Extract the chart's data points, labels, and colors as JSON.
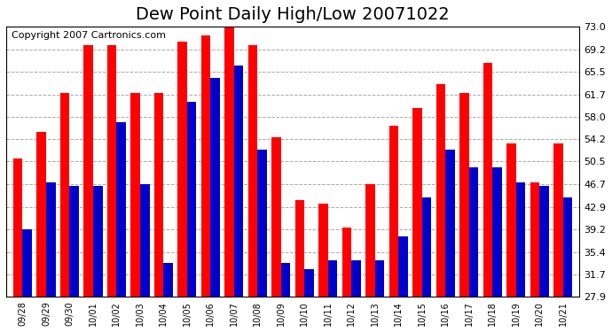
{
  "title": "Dew Point Daily High/Low 20071022",
  "copyright": "Copyright 2007 Cartronics.com",
  "categories": [
    "09/28",
    "09/29",
    "09/30",
    "10/01",
    "10/02",
    "10/03",
    "10/04",
    "10/05",
    "10/06",
    "10/07",
    "10/08",
    "10/09",
    "10/10",
    "10/11",
    "10/12",
    "10/13",
    "10/14",
    "10/15",
    "10/16",
    "10/17",
    "10/18",
    "10/19",
    "10/20",
    "10/21"
  ],
  "high_values": [
    51.0,
    55.5,
    62.0,
    70.0,
    70.0,
    62.0,
    62.0,
    70.5,
    71.5,
    73.0,
    70.0,
    54.5,
    44.0,
    43.5,
    39.5,
    46.7,
    56.5,
    59.5,
    63.5,
    62.0,
    67.0,
    53.5,
    47.0,
    53.5
  ],
  "low_values": [
    39.2,
    47.0,
    46.5,
    46.5,
    57.0,
    46.7,
    33.5,
    60.5,
    64.5,
    66.5,
    52.5,
    33.5,
    32.5,
    34.0,
    34.0,
    34.0,
    38.0,
    44.5,
    52.5,
    49.5,
    49.5,
    47.0,
    46.5,
    44.5
  ],
  "high_color": "#ff0000",
  "low_color": "#0000cc",
  "background_color": "#ffffff",
  "plot_bg_color": "#ffffff",
  "grid_color": "#aaaaaa",
  "ytick_labels": [
    "73.0",
    "69.2",
    "65.5",
    "61.7",
    "58.0",
    "54.2",
    "50.5",
    "46.7",
    "42.9",
    "39.2",
    "35.4",
    "31.7",
    "27.9"
  ],
  "ytick_values": [
    73.0,
    69.2,
    65.5,
    61.7,
    58.0,
    54.2,
    50.5,
    46.7,
    42.9,
    39.2,
    35.4,
    31.7,
    27.9
  ],
  "ylim": [
    27.9,
    73.0
  ],
  "title_fontsize": 14,
  "copyright_fontsize": 8
}
